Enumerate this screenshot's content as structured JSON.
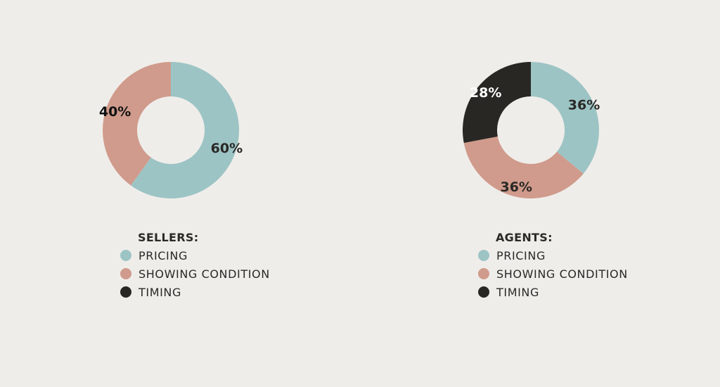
{
  "chart_data": [
    {
      "type": "pie",
      "variant": "donut",
      "legend_title": "SELLERS:",
      "categories": [
        "PRICING",
        "SHOWING CONDITION",
        "TIMING"
      ],
      "values": [
        60,
        40,
        0
      ],
      "value_labels": [
        "60%",
        "40%",
        ""
      ],
      "colors": [
        "#9dc4c5",
        "#d09b8c",
        "#282724"
      ],
      "label_colors": [
        "#2a2926",
        "#111111",
        "#ffffff"
      ],
      "legend": "bottom-left"
    },
    {
      "type": "pie",
      "variant": "donut",
      "legend_title": "AGENTS:",
      "categories": [
        "PRICING",
        "SHOWING CONDITION",
        "TIMING"
      ],
      "values": [
        36,
        36,
        28
      ],
      "value_labels": [
        "36%",
        "36%",
        "28%"
      ],
      "colors": [
        "#9dc4c5",
        "#d09b8c",
        "#282724"
      ],
      "label_colors": [
        "#2a2926",
        "#2a2926",
        "#ffffff"
      ],
      "legend": "bottom-left"
    }
  ]
}
